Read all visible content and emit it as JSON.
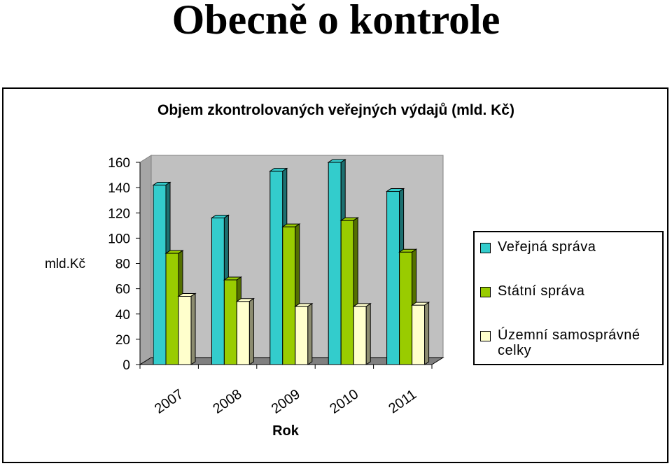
{
  "slide": {
    "title": "Obecně o kontrole"
  },
  "chart_data": {
    "type": "bar",
    "title": "Objem zkontrolovaných veřejných výdajů (mld. Kč)",
    "xlabel": "Rok",
    "ylabel": "mld.Kč",
    "categories": [
      "2007",
      "2008",
      "2009",
      "2010",
      "2011"
    ],
    "series": [
      {
        "name": "Veřejná správa",
        "values": [
          142,
          116,
          153,
          160,
          137
        ],
        "color": "#33CCCC"
      },
      {
        "name": "Státní správa",
        "values": [
          88,
          67,
          109,
          114,
          89
        ],
        "color": "#99CC00"
      },
      {
        "name": "Územní samosprávné celky",
        "values": [
          54,
          50,
          46,
          46,
          47
        ],
        "color": "#FFFFCC"
      }
    ],
    "yticks": [
      "0",
      "20",
      "40",
      "60",
      "80",
      "100",
      "120",
      "140",
      "160"
    ],
    "ylim": [
      0,
      160
    ],
    "grid": false,
    "style": "3d-clustered-column",
    "legend_position": "right"
  }
}
